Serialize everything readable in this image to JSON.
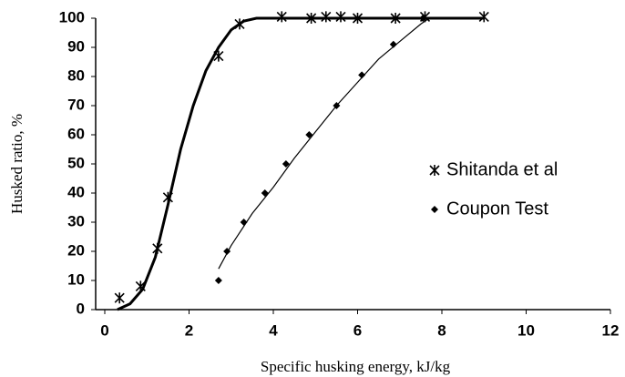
{
  "chart_data": {
    "type": "scatter",
    "x_label": "Specific husking energy, kJ/kg",
    "y_label": "Husked ratio, %",
    "xlim": [
      0,
      12
    ],
    "xticks": [
      0,
      2,
      4,
      6,
      8,
      10,
      12
    ],
    "ylim": [
      0,
      100
    ],
    "yticks": [
      0,
      10,
      20,
      30,
      40,
      50,
      60,
      70,
      80,
      90,
      100
    ],
    "grid": false,
    "legend": "right",
    "series": [
      {
        "name": "Shitanda et al",
        "color": "#000000",
        "marker": "asterisk",
        "x": [
          0.35,
          0.85,
          1.25,
          1.5,
          2.7,
          3.2,
          4.2,
          4.9,
          5.25,
          5.6,
          6.0,
          6.9,
          7.6,
          9.0
        ],
        "values": [
          4,
          8,
          21,
          38.5,
          87,
          98,
          100.5,
          100,
          100.5,
          100.5,
          100,
          100,
          100.5,
          100.5
        ],
        "curve_x": [
          0.3,
          0.6,
          0.9,
          1.2,
          1.5,
          1.8,
          2.1,
          2.4,
          2.7,
          3.0,
          3.3,
          3.6,
          9.0
        ],
        "curve_y": [
          0,
          2,
          7,
          18,
          36,
          55,
          70,
          82,
          90,
          96,
          99,
          100,
          100
        ]
      },
      {
        "name": "Coupon Test",
        "color": "#000000",
        "marker": "diamond",
        "x": [
          2.7,
          2.9,
          3.3,
          3.8,
          4.3,
          4.85,
          5.5,
          6.1,
          6.85,
          7.55
        ],
        "values": [
          10,
          20,
          30,
          40,
          50,
          60,
          70,
          80.5,
          91,
          100
        ],
        "curve_x": [
          2.7,
          3.0,
          3.5,
          4.0,
          4.5,
          5.0,
          5.5,
          6.0,
          6.5,
          7.0,
          7.5,
          7.7
        ],
        "curve_y": [
          14,
          22,
          33,
          42,
          52,
          61,
          70,
          78,
          86,
          92,
          98,
          100
        ]
      }
    ]
  }
}
